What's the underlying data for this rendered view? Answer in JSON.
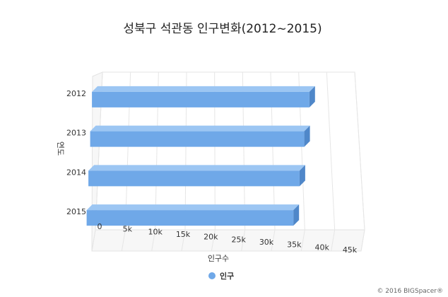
{
  "chart_data": {
    "type": "bar",
    "orientation": "horizontal",
    "three_d": true,
    "title": "성북구 석관동 인구변화(2012~2015)",
    "categories": [
      "2012",
      "2013",
      "2014",
      "2015"
    ],
    "series": [
      {
        "name": "인구",
        "values": [
          37800,
          36600,
          35500,
          34200
        ],
        "color": "#6fa8e8"
      }
    ],
    "xlabel": "인구수",
    "ylabel": "연도",
    "xlim": [
      0,
      45000
    ],
    "x_ticks": [
      "0",
      "5k",
      "10k",
      "15k",
      "20k",
      "25k",
      "30k",
      "35k",
      "40k",
      "45k"
    ],
    "grid": true,
    "legend_position": "bottom"
  },
  "credit": "© 2016 BIGSpacer®"
}
